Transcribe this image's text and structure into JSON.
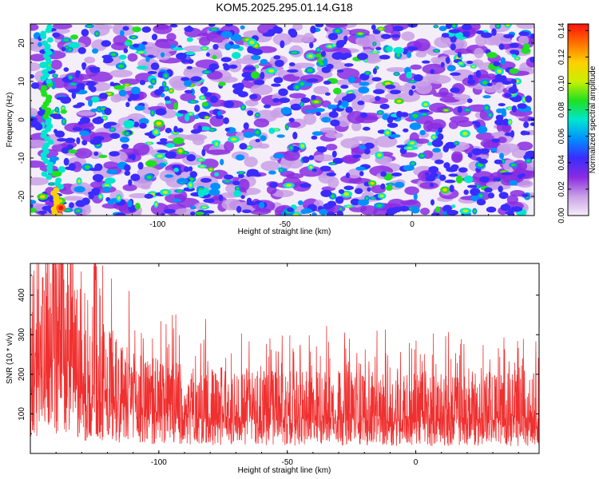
{
  "title": "KOM5.2025.295.01.14.G18",
  "colormap_stops": [
    "#f4eef8",
    "#c9a0e6",
    "#8a2be2",
    "#3a2cff",
    "#0090ff",
    "#00e6d0",
    "#20e020",
    "#c8f000",
    "#ffd000",
    "#ff7000",
    "#ff1010"
  ],
  "line_color": "#f03030",
  "chart_data": [
    {
      "type": "heatmap",
      "title": "KOM5.2025.295.01.14.G18",
      "xlabel": "Height of straight line (km)",
      "ylabel": "Frequency (Hz)",
      "xlim": [
        -150,
        48
      ],
      "ylim": [
        -25,
        25
      ],
      "xticks": [
        -100,
        -50,
        0
      ],
      "yticks": [
        -20,
        -10,
        0,
        10,
        20
      ],
      "colorbar": {
        "label": "Normalized spectral amplitude",
        "range": [
          0,
          0.145
        ],
        "ticks": [
          "0.00",
          "0.02",
          "0.04",
          "0.06",
          "0.08",
          "0.10",
          "0.12",
          "0.14"
        ]
      },
      "notes": "Dense speckled spectral amplitude field, mostly 0.01-0.04 with scattered peaks; strong ridge near x=-145 reaching ~0.14 at low frequency."
    },
    {
      "type": "line",
      "xlabel": "Height of straight line (km)",
      "ylabel": "SNR (10 * v/v)",
      "xlim": [
        -150,
        48
      ],
      "ylim": [
        0,
        480
      ],
      "xticks": [
        -100,
        -50,
        0
      ],
      "yticks": [
        100,
        200,
        300,
        400
      ],
      "series": [
        {
          "name": "SNR",
          "x": [
            -150,
            -145,
            -140,
            -135,
            -130,
            -125,
            -120,
            -115,
            -110,
            -100,
            -90,
            -80,
            -70,
            -60,
            -50,
            -40,
            -30,
            -20,
            -10,
            0,
            10,
            20,
            30,
            40,
            48
          ],
          "values": [
            250,
            300,
            330,
            350,
            200,
            190,
            220,
            180,
            160,
            150,
            140,
            135,
            140,
            135,
            130,
            130,
            135,
            130,
            125,
            130,
            125,
            125,
            130,
            125,
            130
          ]
        }
      ],
      "notes": "Dense noisy trace; envelope ~20 to ~300 with spikes up to ~480 near x=-138 and x=-125."
    }
  ]
}
